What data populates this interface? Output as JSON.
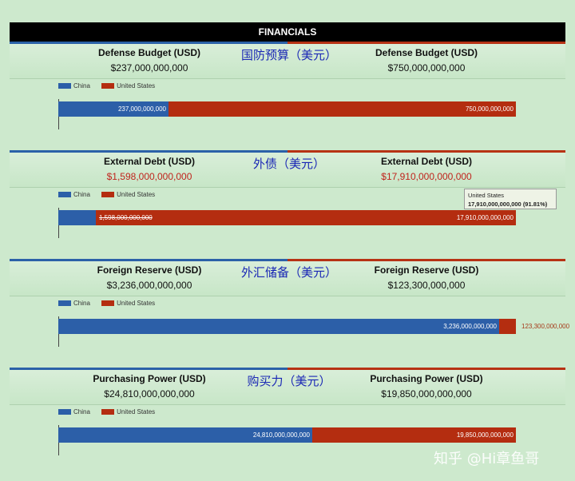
{
  "header": {
    "title": "FINANCIALS"
  },
  "legend": {
    "china": "China",
    "us": "United States",
    "china_color": "#2c5fa8",
    "us_color": "#b42d10"
  },
  "panels": [
    {
      "left_title": "Defense Budget (USD)",
      "left_value": "$237,000,000,000",
      "right_title": "Defense Budget (USD)",
      "right_value": "$750,000,000,000",
      "zh_label": "国防预算（美元）",
      "china_label": "237,000,000,000",
      "us_label": "750,000,000,000",
      "value_color": "black"
    },
    {
      "left_title": "External Debt (USD)",
      "left_value": "$1,598,000,000,000",
      "right_title": "External Debt (USD)",
      "right_value": "$17,910,000,000,000",
      "zh_label": "外债（美元）",
      "china_label": "1,598,000,000,000",
      "us_label": "17,910,000,000,000",
      "value_color": "red"
    },
    {
      "left_title": "Foreign Reserve (USD)",
      "left_value": "$3,236,000,000,000",
      "right_title": "Foreign Reserve (USD)",
      "right_value": "$123,300,000,000",
      "zh_label": "外汇储备（美元）",
      "china_label": "3,236,000,000,000",
      "us_label": "123,300,000,000",
      "value_color": "black"
    },
    {
      "left_title": "Purchasing Power (USD)",
      "left_value": "$24,810,000,000,000",
      "right_title": "Purchasing Power (USD)",
      "right_value": "$19,850,000,000,000",
      "zh_label": "购买力（美元）",
      "china_label": "24,810,000,000,000",
      "us_label": "19,850,000,000,000",
      "value_color": "black"
    }
  ],
  "tooltip": {
    "line1": "United States",
    "line2": "17,910,000,000,000 (91.81%)"
  },
  "watermark": "知乎 @Hi章鱼哥",
  "chart_data": [
    {
      "type": "bar",
      "stacked": true,
      "orientation": "horizontal",
      "title": "Defense Budget (USD)",
      "series": [
        {
          "name": "China",
          "values": [
            237000000000
          ]
        },
        {
          "name": "United States",
          "values": [
            750000000000
          ]
        }
      ]
    },
    {
      "type": "bar",
      "stacked": true,
      "orientation": "horizontal",
      "title": "External Debt (USD)",
      "series": [
        {
          "name": "China",
          "values": [
            1598000000000
          ]
        },
        {
          "name": "United States",
          "values": [
            17910000000000
          ]
        }
      ]
    },
    {
      "type": "bar",
      "stacked": true,
      "orientation": "horizontal",
      "title": "Foreign Reserve (USD)",
      "series": [
        {
          "name": "China",
          "values": [
            3236000000000
          ]
        },
        {
          "name": "United States",
          "values": [
            123300000000
          ]
        }
      ]
    },
    {
      "type": "bar",
      "stacked": true,
      "orientation": "horizontal",
      "title": "Purchasing Power (USD)",
      "series": [
        {
          "name": "China",
          "values": [
            24810000000000
          ]
        },
        {
          "name": "United States",
          "values": [
            19850000000000
          ]
        }
      ]
    }
  ]
}
